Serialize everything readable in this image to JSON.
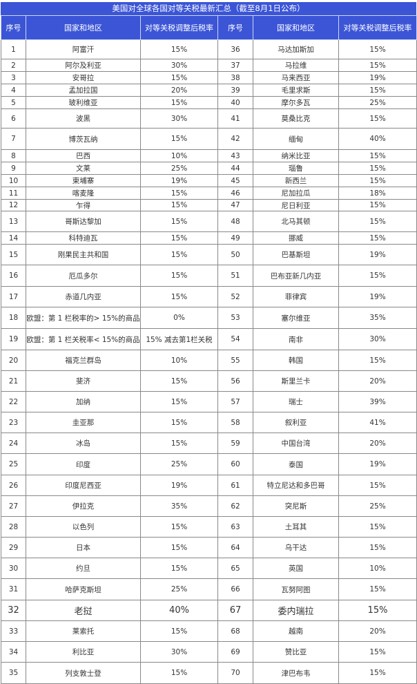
{
  "title": "美国对全球各国对等关税最新汇总（截至8月1日公布）",
  "colors": {
    "header_bg": "#3b55d6",
    "header_text": "#ffffff"
  },
  "headers": [
    "序号",
    "国家和地区",
    "对等关税调整后税率",
    "序号",
    "国家和地区",
    "对等关税调整后税率"
  ],
  "rows": [
    [
      "1",
      "阿富汗",
      "15%",
      "36",
      "马达加斯加",
      "15%"
    ],
    [
      "2",
      "阿尔及利亚",
      "30%",
      "37",
      "马拉维",
      "15%"
    ],
    [
      "3",
      "安哥拉",
      "15%",
      "38",
      "马来西亚",
      "19%"
    ],
    [
      "4",
      "孟加拉国",
      "20%",
      "39",
      "毛里求斯",
      "15%"
    ],
    [
      "5",
      "玻利维亚",
      "15%",
      "40",
      "摩尔多瓦",
      "25%"
    ],
    [
      "6",
      "波黑",
      "30%",
      "41",
      "莫桑比克",
      "15%"
    ],
    [
      "7",
      "博茨瓦纳",
      "15%",
      "42",
      "缅甸",
      "40%"
    ],
    [
      "8",
      "巴西",
      "10%",
      "43",
      "纳米比亚",
      "15%"
    ],
    [
      "9",
      "文莱",
      "25%",
      "44",
      "瑙鲁",
      "15%"
    ],
    [
      "10",
      "柬埔寨",
      "19%",
      "45",
      "新西兰",
      "15%"
    ],
    [
      "11",
      "喀麦隆",
      "15%",
      "46",
      "尼加拉瓜",
      "18%"
    ],
    [
      "12",
      "乍得",
      "15%",
      "47",
      "尼日利亚",
      "15%"
    ],
    [
      "13",
      "哥斯达黎加",
      "15%",
      "48",
      "北马其顿",
      "15%"
    ],
    [
      "14",
      "科特迪瓦",
      "15%",
      "49",
      "挪威",
      "15%"
    ],
    [
      "15",
      "刚果民主共和国",
      "15%",
      "50",
      "巴基斯坦",
      "19%"
    ],
    [
      "16",
      "厄瓜多尔",
      "15%",
      "51",
      "巴布亚新几内亚",
      "15%"
    ],
    [
      "17",
      "赤道几内亚",
      "15%",
      "52",
      "菲律宾",
      "19%"
    ],
    [
      "18",
      "欧盟：第 1 栏税率的> 15%的商品",
      "0%",
      "53",
      "塞尔维亚",
      "35%"
    ],
    [
      "19",
      "欧盟：第 1 栏关税率< 15%的商品",
      "15% 减去第1栏关税",
      "54",
      "南非",
      "30%"
    ],
    [
      "20",
      "福克兰群岛",
      "10%",
      "55",
      "韩国",
      "15%"
    ],
    [
      "21",
      "斐济",
      "15%",
      "56",
      "斯里兰卡",
      "20%"
    ],
    [
      "22",
      "加纳",
      "15%",
      "57",
      "瑞士",
      "39%"
    ],
    [
      "23",
      "圭亚那",
      "15%",
      "58",
      "叙利亚",
      "41%"
    ],
    [
      "24",
      "冰岛",
      "15%",
      "59",
      "中国台湾",
      "20%"
    ],
    [
      "25",
      "印度",
      "25%",
      "60",
      "泰国",
      "19%"
    ],
    [
      "26",
      "印度尼西亚",
      "19%",
      "61",
      "特立尼达和多巴哥",
      "15%"
    ],
    [
      "27",
      "伊拉克",
      "35%",
      "62",
      "突尼斯",
      "25%"
    ],
    [
      "28",
      "以色列",
      "15%",
      "63",
      "土耳其",
      "15%"
    ],
    [
      "29",
      "日本",
      "15%",
      "64",
      "乌干达",
      "15%"
    ],
    [
      "30",
      "约旦",
      "15%",
      "65",
      "英国",
      "10%"
    ],
    [
      "31",
      "哈萨克斯坦",
      "25%",
      "66",
      "瓦努阿图",
      "15%"
    ],
    [
      "32",
      "老挝",
      "40%",
      "67",
      "委内瑞拉",
      "15%"
    ],
    [
      "33",
      "莱索托",
      "15%",
      "68",
      "越南",
      "20%"
    ],
    [
      "34",
      "利比亚",
      "30%",
      "69",
      "赞比亚",
      "15%"
    ],
    [
      "35",
      "列支敦士登",
      "15%",
      "70",
      "津巴布韦",
      "15%"
    ]
  ]
}
